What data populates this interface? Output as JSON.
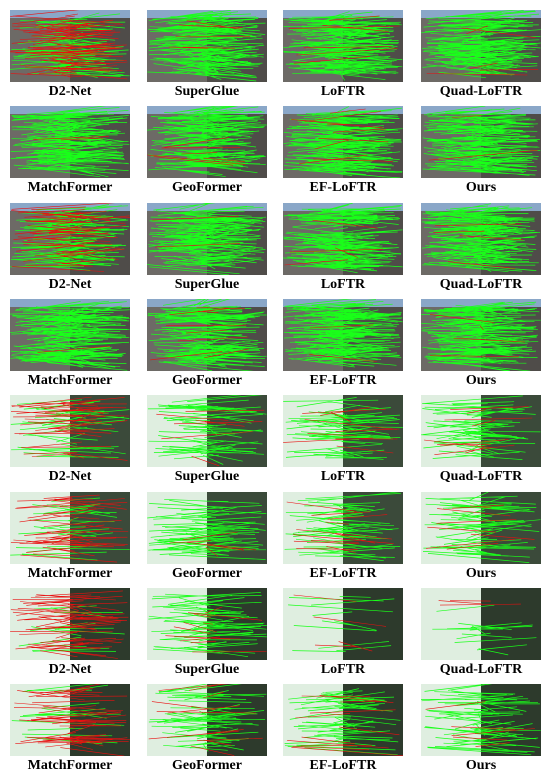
{
  "rows": [
    [
      "D2-Net",
      "SuperGlue",
      "LoFTR",
      "Quad-LoFTR"
    ],
    [
      "MatchFormer",
      "GeoFormer",
      "EF-LoFTR",
      "Ours"
    ],
    [
      "D2-Net",
      "SuperGlue",
      "LoFTR",
      "Quad-LoFTR"
    ],
    [
      "MatchFormer",
      "GeoFormer",
      "EF-LoFTR",
      "Ours"
    ],
    [
      "D2-Net",
      "SuperGlue",
      "LoFTR",
      "Quad-LoFTR"
    ],
    [
      "MatchFormer",
      "GeoFormer",
      "EF-LoFTR",
      "Ours"
    ],
    [
      "D2-Net",
      "SuperGlue",
      "LoFTR",
      "Quad-LoFTR"
    ],
    [
      "MatchFormer",
      "GeoFormer",
      "EF-LoFTR",
      "Ours"
    ]
  ]
}
